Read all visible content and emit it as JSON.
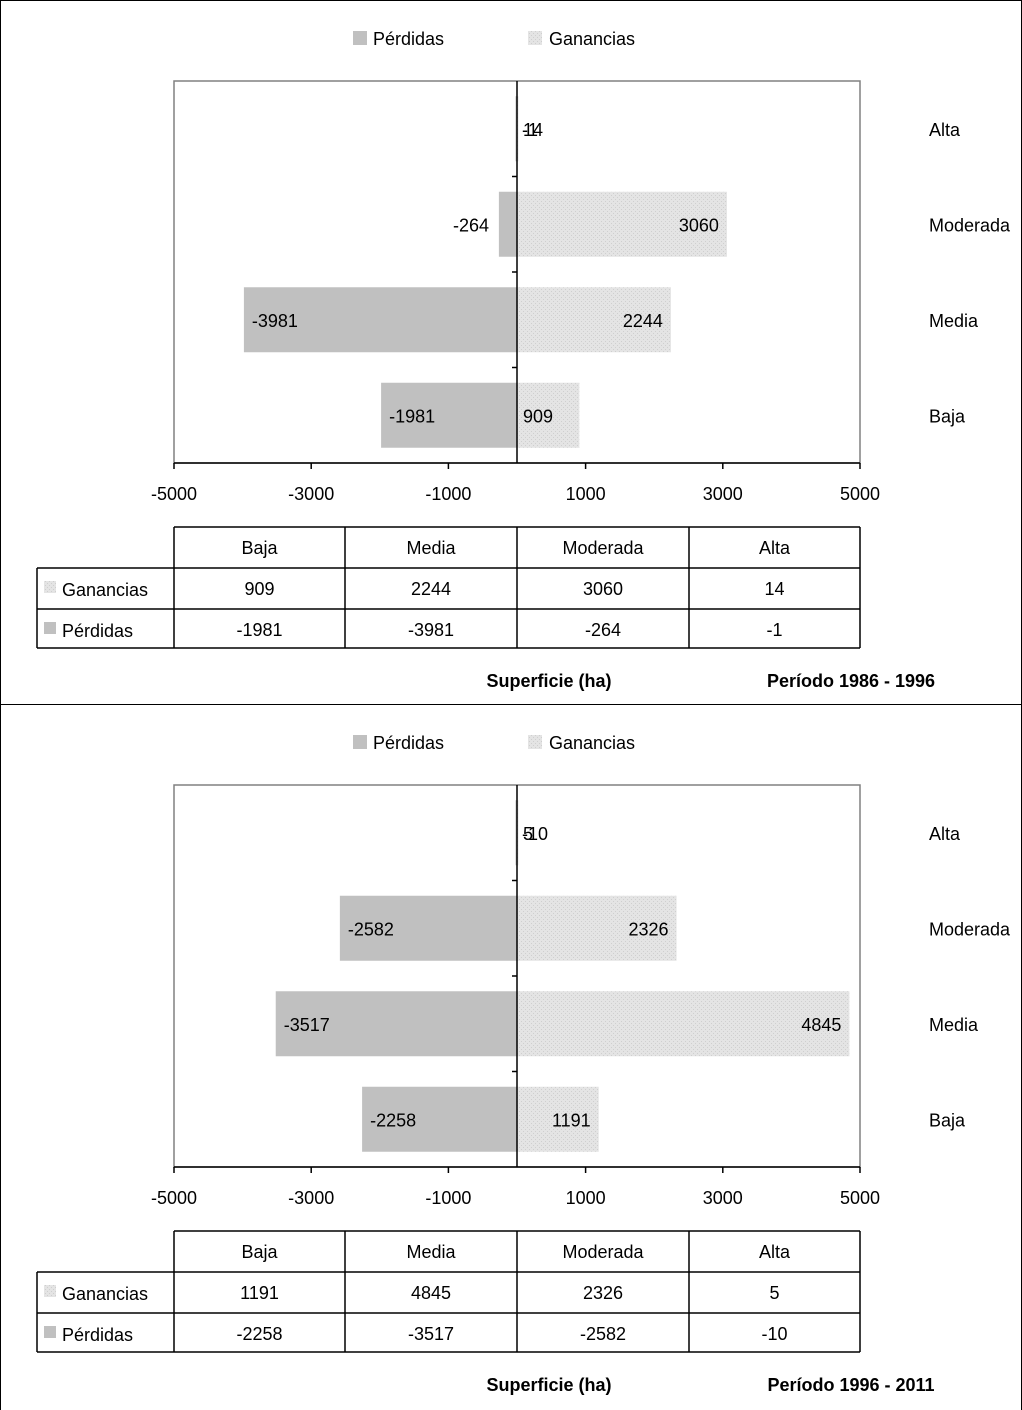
{
  "chart_data": [
    {
      "type": "bar",
      "orientation": "horizontal",
      "title": "Período 1986 - 1996",
      "xlabel": "Superficie (ha)",
      "categories": [
        "Baja",
        "Media",
        "Moderada",
        "Alta"
      ],
      "series": [
        {
          "name": "Pérdidas",
          "values": [
            -1981,
            -3981,
            -264,
            -1
          ]
        },
        {
          "name": "Ganancias",
          "values": [
            909,
            2244,
            3060,
            14
          ]
        }
      ],
      "xlim": [
        -5000,
        5000
      ],
      "xticks": [
        "-5000",
        "-3000",
        "-1000",
        "1000",
        "3000",
        "5000"
      ],
      "legend": "top",
      "data_table": {
        "headers": [
          "Baja",
          "Media",
          "Moderada",
          "Alta"
        ],
        "rows": [
          {
            "label": "Ganancias",
            "values": [
              "909",
              "2244",
              "3060",
              "14"
            ]
          },
          {
            "label": "Pérdidas",
            "values": [
              "-1981",
              "-3981",
              "-264",
              "-1"
            ]
          }
        ]
      }
    },
    {
      "type": "bar",
      "orientation": "horizontal",
      "title": "Período 1996 - 2011",
      "xlabel": "Superficie (ha)",
      "categories": [
        "Baja",
        "Media",
        "Moderada",
        "Alta"
      ],
      "series": [
        {
          "name": "Pérdidas",
          "values": [
            -2258,
            -3517,
            -2582,
            -10
          ]
        },
        {
          "name": "Ganancias",
          "values": [
            1191,
            4845,
            2326,
            5
          ]
        }
      ],
      "xlim": [
        -5000,
        5000
      ],
      "xticks": [
        "-5000",
        "-3000",
        "-1000",
        "1000",
        "3000",
        "5000"
      ],
      "legend": "top",
      "data_table": {
        "headers": [
          "Baja",
          "Media",
          "Moderada",
          "Alta"
        ],
        "rows": [
          {
            "label": "Ganancias",
            "values": [
              "1191",
              "4845",
              "2326",
              "5"
            ]
          },
          {
            "label": "Pérdidas",
            "values": [
              "-2258",
              "-3517",
              "-2582",
              "-10"
            ]
          }
        ]
      }
    }
  ],
  "colors": {
    "losses": "#c0c0c0",
    "gains": "#e4e4e4",
    "gains_pattern": "#cfcfcf",
    "axis": "#000000",
    "plot_border": "#808080"
  }
}
